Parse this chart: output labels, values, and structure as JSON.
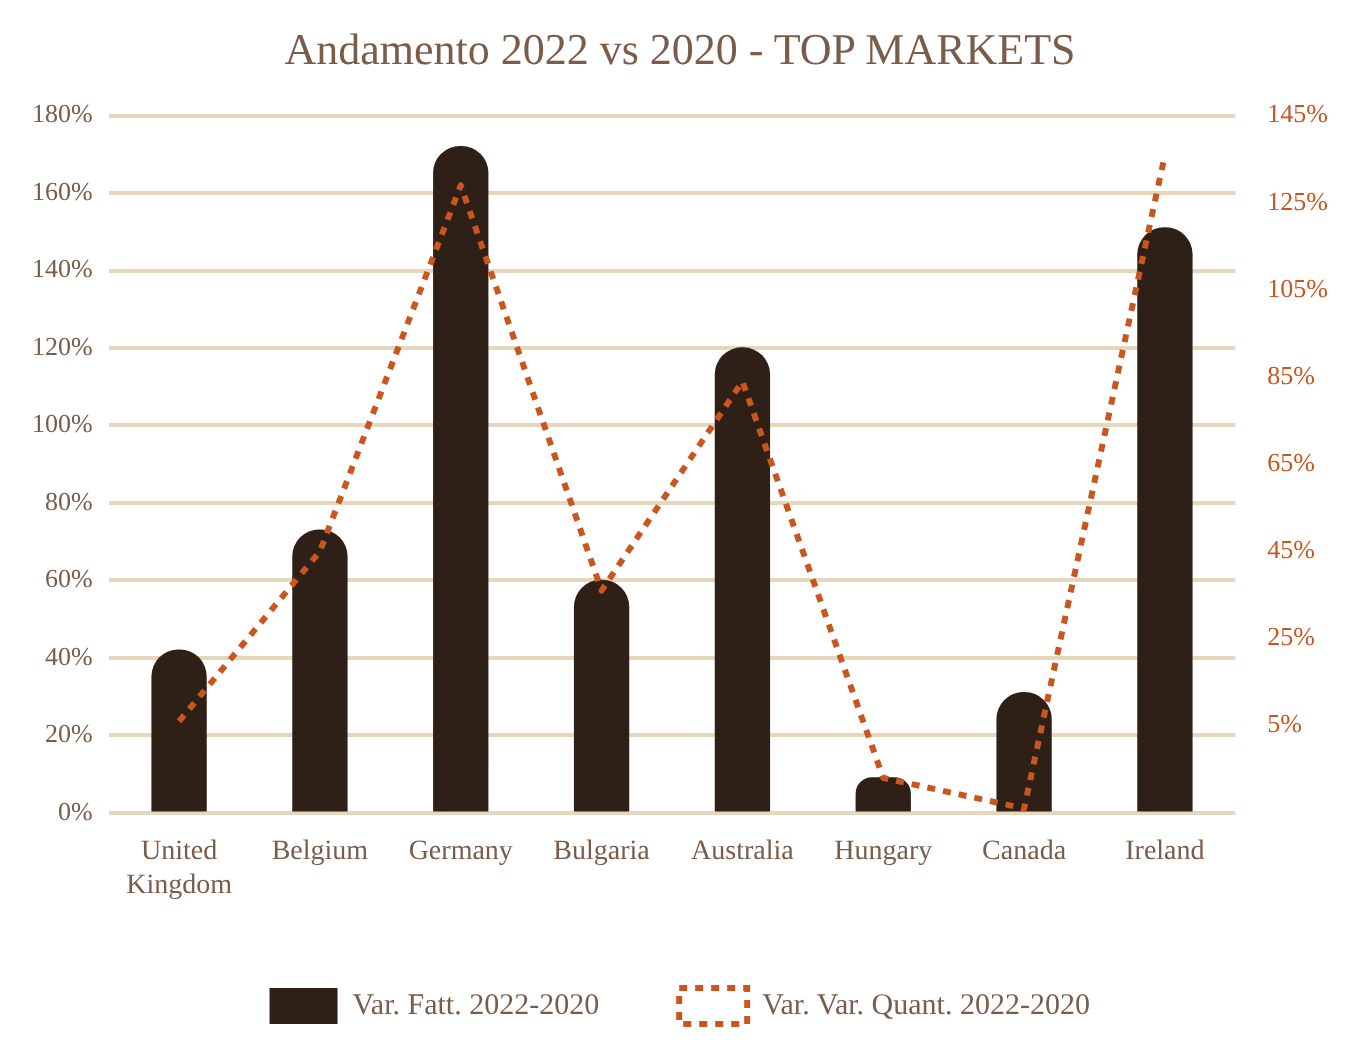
{
  "chart_data": {
    "type": "bar",
    "title": "Andamento 2022 vs 2020 - TOP MARKETS",
    "categories": [
      "United Kingdom",
      "Belgium",
      "Germany",
      "Bulgaria",
      "Australia",
      "Hungary",
      "Canada",
      "Ireland"
    ],
    "series": [
      {
        "name": "Var. Fatt. 2022-2020",
        "color": "#2e2016",
        "values": [
          42,
          73,
          172,
          60,
          120,
          9,
          31,
          151
        ]
      },
      {
        "name": "Var. Var. Quant. 2022-2020",
        "type": "line",
        "axis": "y2",
        "color": "#c8561e",
        "line_style": "dashed",
        "marker": "none",
        "values": [
          6,
          45,
          129,
          36,
          84,
          -7,
          -14,
          136
        ]
      }
    ],
    "ylim": [
      0,
      180
    ],
    "yticks": [
      {
        "value": 0,
        "label": "0%"
      },
      {
        "value": 20,
        "label": "20%"
      },
      {
        "value": 40,
        "label": "40%"
      },
      {
        "value": 60,
        "label": "60%"
      },
      {
        "value": 80,
        "label": "80%"
      },
      {
        "value": 100,
        "label": "100%"
      },
      {
        "value": 120,
        "label": "120%"
      },
      {
        "value": 140,
        "label": "140%"
      },
      {
        "value": 160,
        "label": "160%"
      },
      {
        "value": 180,
        "label": "180%"
      }
    ],
    "y2lim": [
      -15,
      145
    ],
    "y2ticks": [
      {
        "value": 5,
        "label": "5%"
      },
      {
        "value": 25,
        "label": "25%"
      },
      {
        "value": 45,
        "label": "45%"
      },
      {
        "value": 65,
        "label": "65%"
      },
      {
        "value": 85,
        "label": "85%"
      },
      {
        "value": 105,
        "label": "105%"
      },
      {
        "value": 125,
        "label": "125%"
      },
      {
        "value": 145,
        "label": "145%"
      }
    ],
    "grid": "y",
    "legend": "bottom"
  }
}
